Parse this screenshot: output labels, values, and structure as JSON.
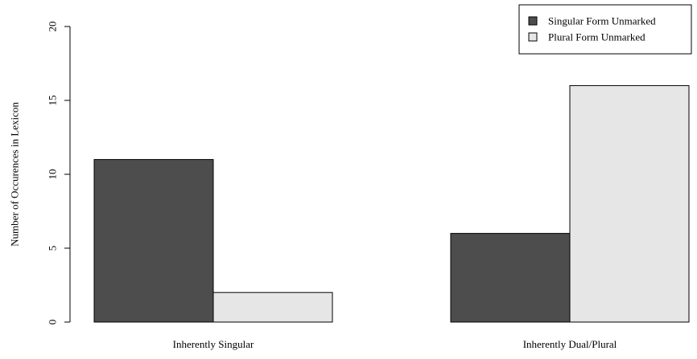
{
  "chart_data": {
    "type": "bar",
    "categories": [
      "Inherently Singular",
      "Inherently Dual/Plural"
    ],
    "series": [
      {
        "name": "Singular Form Unmarked",
        "values": [
          11,
          6
        ],
        "color": "#4d4d4d"
      },
      {
        "name": "Plural Form Unmarked",
        "values": [
          2,
          16
        ],
        "color": "#e6e6e6"
      }
    ],
    "title": "",
    "xlabel": "",
    "ylabel": "Number of Occurences in Lexicon",
    "ylim": [
      0,
      20
    ],
    "yticks": [
      0,
      5,
      10,
      15,
      20
    ],
    "grid": false,
    "legend_position": "top-right"
  }
}
